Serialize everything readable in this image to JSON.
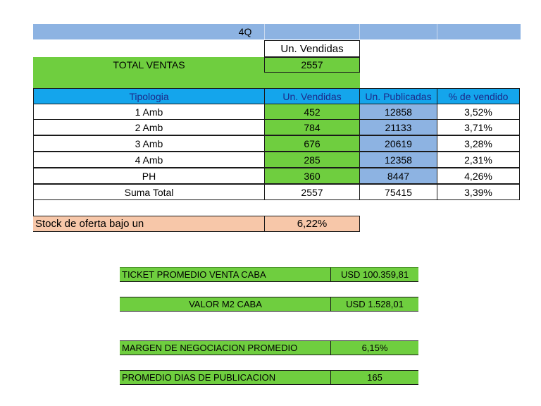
{
  "header": {
    "period": "4Q"
  },
  "total": {
    "col_label": "Un. Vendidas",
    "label": "TOTAL VENTAS",
    "value": "2557"
  },
  "table": {
    "columns": [
      "Tipologia",
      "Un. Vendidas",
      "Un. Publicadas",
      "% de vendido"
    ],
    "rows": [
      {
        "tipo": "1 Amb",
        "vendidas": "452",
        "publicadas": "12858",
        "pct": "3,52%"
      },
      {
        "tipo": "2 Amb",
        "vendidas": "784",
        "publicadas": "21133",
        "pct": "3,71%"
      },
      {
        "tipo": "3 Amb",
        "vendidas": "676",
        "publicadas": "20619",
        "pct": "3,28%"
      },
      {
        "tipo": "4 Amb",
        "vendidas": "285",
        "publicadas": "12358",
        "pct": "2,31%"
      },
      {
        "tipo": "PH",
        "vendidas": "360",
        "publicadas": "8447",
        "pct": "4,26%"
      }
    ],
    "total_row": {
      "tipo": "Suma Total",
      "vendidas": "2557",
      "publicadas": "75415",
      "pct": "3,39%"
    }
  },
  "stock": {
    "label": "Stock de oferta bajo un",
    "value": "6,22%"
  },
  "kpis": {
    "ticket": {
      "label": "TICKET PROMEDIO VENTA CABA",
      "value": "USD 100.359,81"
    },
    "m2": {
      "label": "VALOR M2 CABA",
      "value": "USD 1.528,01"
    },
    "margen": {
      "label": "MARGEN DE NEGOCIACION PROMEDIO",
      "value": "6,15%"
    },
    "dias": {
      "label": "PROMEDIO DIAS DE PUBLICACION",
      "value": "165"
    }
  },
  "colors": {
    "green": "#6fce3f",
    "blue": "#8db3e2",
    "cyan": "#14a5ec",
    "peach": "#f7c7a9"
  }
}
